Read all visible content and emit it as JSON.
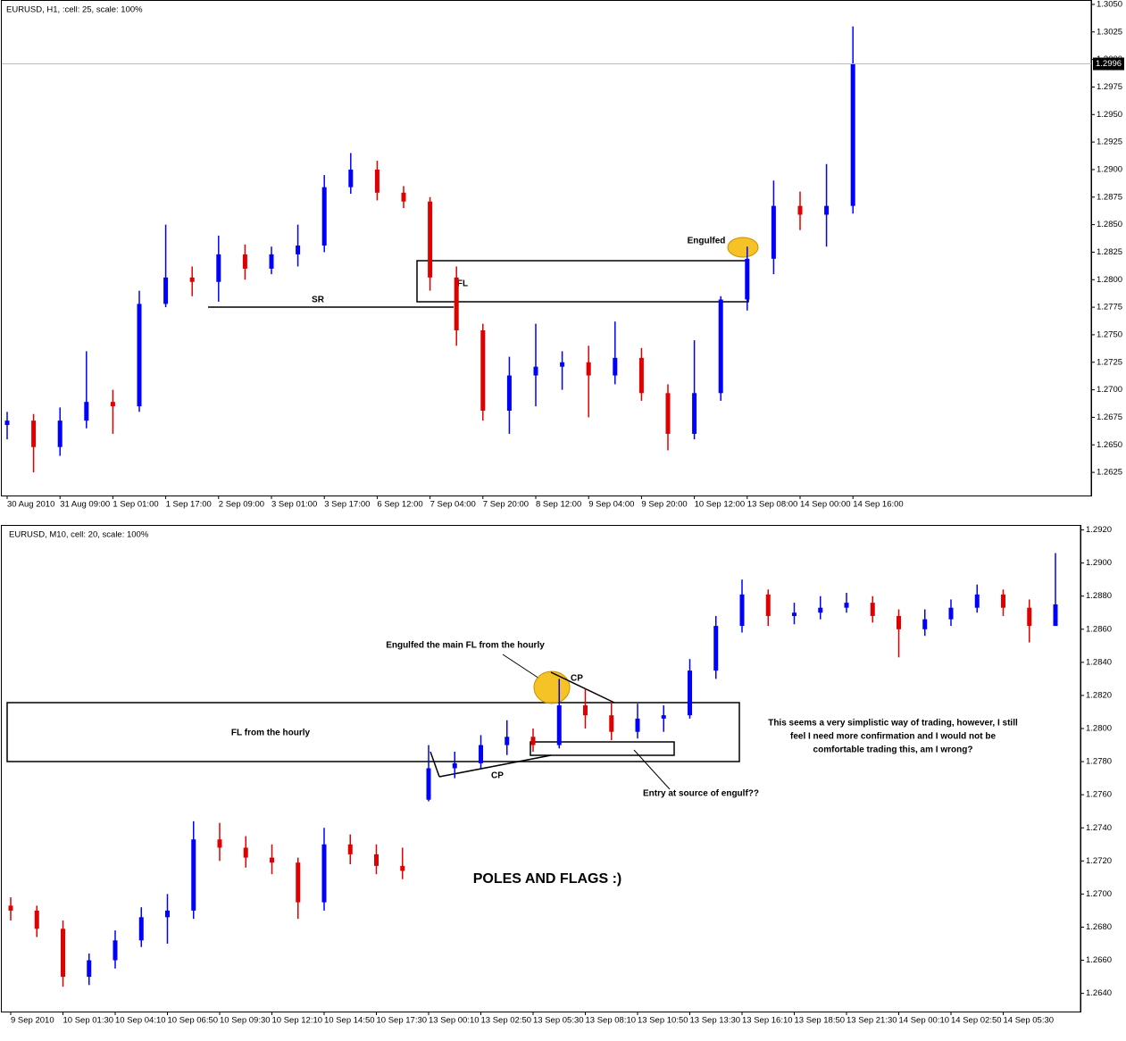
{
  "chart_data": [
    {
      "type": "candlestick",
      "title": "EURUSD, H1, :cell: 25, scale: 100%",
      "categories": [
        "30 Aug 2010",
        null,
        "31 Aug 09:00",
        null,
        "1 Sep 01:00",
        null,
        "1 Sep 17:00",
        null,
        "2 Sep 09:00",
        null,
        "3 Sep 01:00",
        null,
        "3 Sep 17:00",
        null,
        "6 Sep 12:00",
        null,
        "7 Sep 04:00",
        null,
        "7 Sep 20:00",
        null,
        "8 Sep 12:00",
        null,
        "9 Sep 04:00",
        null,
        "9 Sep 20:00",
        null,
        "10 Sep 12:00",
        null,
        "13 Sep 08:00",
        null,
        "14 Sep 00:00",
        null,
        "14 Sep 16:00"
      ],
      "open": [
        1.2668,
        1.2672,
        1.2648,
        1.2672,
        1.2689,
        1.2685,
        1.2778,
        1.2802,
        1.2798,
        1.2823,
        1.281,
        1.2823,
        1.2831,
        1.2884,
        1.29,
        1.2879,
        1.2871,
        1.2802,
        1.2754,
        1.2681,
        1.2713,
        1.2721,
        1.2725,
        1.2713,
        1.2729,
        1.2697,
        1.266,
        1.2697,
        1.2782,
        1.2819,
        1.2867,
        1.2859,
        1.2867
      ],
      "high": [
        1.268,
        1.2678,
        1.2684,
        1.2735,
        1.27,
        1.279,
        1.285,
        1.2812,
        1.284,
        1.2832,
        1.283,
        1.285,
        1.2895,
        1.2915,
        1.2908,
        1.2885,
        1.2875,
        1.2812,
        1.276,
        1.273,
        1.276,
        1.2735,
        1.274,
        1.2762,
        1.2738,
        1.2705,
        1.2745,
        1.2785,
        1.283,
        1.289,
        1.288,
        1.2905,
        1.303
      ],
      "low": [
        1.2655,
        1.2625,
        1.264,
        1.2665,
        1.266,
        1.268,
        1.2775,
        1.2785,
        1.278,
        1.28,
        1.2805,
        1.2812,
        1.2825,
        1.2878,
        1.2872,
        1.2865,
        1.279,
        1.274,
        1.2672,
        1.266,
        1.2685,
        1.27,
        1.2675,
        1.2705,
        1.269,
        1.2645,
        1.2655,
        1.269,
        1.2772,
        1.2805,
        1.2845,
        1.283,
        1.286
      ],
      "close": [
        1.2672,
        1.2648,
        1.2672,
        1.2689,
        1.2685,
        1.2778,
        1.2802,
        1.2798,
        1.2823,
        1.281,
        1.2823,
        1.2831,
        1.2884,
        1.29,
        1.2879,
        1.2871,
        1.2802,
        1.2754,
        1.2681,
        1.2713,
        1.2721,
        1.2725,
        1.2713,
        1.2729,
        1.2697,
        1.266,
        1.2697,
        1.2782,
        1.2819,
        1.2867,
        1.2859,
        1.2867,
        1.2996
      ],
      "up_color": "#0000ff",
      "down_color": "#e00000",
      "ylim": [
        1.2604,
        1.3054
      ],
      "yticks": [
        1.2625,
        {
          "value": 1.265,
          "label": "1.2650"
        },
        1.2675,
        {
          "value": 1.27,
          "label": "1.2700"
        },
        1.2725,
        {
          "value": 1.275,
          "label": "1.2750"
        },
        1.2775,
        {
          "value": 1.28,
          "label": "1.2800"
        },
        1.2825,
        {
          "value": 1.285,
          "label": "1.2850"
        },
        1.2875,
        {
          "value": 1.29,
          "label": "1.2900"
        },
        1.2925,
        {
          "value": 1.295,
          "label": "1.2950"
        },
        1.2975,
        {
          "value": 1.3,
          "label": "1.3000"
        },
        1.3025,
        {
          "value": 1.305,
          "label": "1.3050"
        }
      ],
      "last_price": 1.2996,
      "annotations": [
        "SR",
        "FL",
        "Engulfed"
      ]
    },
    {
      "type": "candlestick",
      "title": "EURUSD, M10, cell: 20, scale: 100%",
      "categories": [
        "9 Sep 2010",
        null,
        "10 Sep 01:30",
        null,
        "10 Sep 04:10",
        null,
        "10 Sep 06:50",
        null,
        "10 Sep 09:30",
        null,
        "10 Sep 12:10",
        null,
        "10 Sep 14:50",
        null,
        "10 Sep 17:30",
        null,
        "13 Sep 00:10",
        null,
        "13 Sep 02:50",
        null,
        "13 Sep 05:30",
        null,
        "13 Sep 08:10",
        null,
        "13 Sep 10:50",
        null,
        "13 Sep 13:30",
        null,
        "13 Sep 16:10",
        null,
        "13 Sep 18:50",
        null,
        "13 Sep 21:30",
        null,
        "14 Sep 00:10",
        null,
        "14 Sep 02:50",
        null,
        "14 Sep 05:30",
        null,
        null
      ],
      "open": [
        1.2693,
        1.269,
        1.2679,
        1.265,
        1.266,
        1.2672,
        1.2686,
        1.269,
        1.2733,
        1.2728,
        1.2722,
        1.2719,
        1.2695,
        1.273,
        1.2724,
        1.2717,
        1.2757,
        1.2776,
        1.2779,
        1.279,
        1.2795,
        1.279,
        1.2814,
        1.2808,
        1.2798,
        1.2806,
        1.2808,
        1.2835,
        1.2862,
        1.2881,
        1.2868,
        1.287,
        1.2873,
        1.2876,
        1.2868,
        1.286,
        1.2866,
        1.2873,
        1.2881,
        1.2873,
        1.2862
      ],
      "high": [
        1.2698,
        1.2693,
        1.2684,
        1.2664,
        1.2678,
        1.2692,
        1.27,
        1.2744,
        1.2743,
        1.2735,
        1.273,
        1.2722,
        1.274,
        1.2736,
        1.273,
        1.2728,
        1.279,
        1.2786,
        1.2796,
        1.2805,
        1.28,
        1.283,
        1.2824,
        1.2816,
        1.2815,
        1.2814,
        1.2842,
        1.2868,
        1.289,
        1.2884,
        1.2876,
        1.288,
        1.2882,
        1.288,
        1.2872,
        1.2872,
        1.2878,
        1.2887,
        1.2884,
        1.2878,
        1.2906
      ],
      "low": [
        1.2684,
        1.2674,
        1.2644,
        1.2645,
        1.2655,
        1.2668,
        1.267,
        1.2685,
        1.272,
        1.2716,
        1.2712,
        1.2685,
        1.269,
        1.2718,
        1.2712,
        1.2709,
        1.2756,
        1.277,
        1.2776,
        1.2784,
        1.2786,
        1.2788,
        1.28,
        1.2793,
        1.2794,
        1.2798,
        1.2806,
        1.283,
        1.2858,
        1.2862,
        1.2863,
        1.2866,
        1.287,
        1.2864,
        1.2843,
        1.2856,
        1.2862,
        1.287,
        1.2868,
        1.2852,
        1.2862
      ],
      "close": [
        1.269,
        1.2679,
        1.265,
        1.266,
        1.2672,
        1.2686,
        1.269,
        1.2733,
        1.2728,
        1.2722,
        1.2719,
        1.2695,
        1.273,
        1.2724,
        1.2717,
        1.2714,
        1.2776,
        1.2779,
        1.279,
        1.2795,
        1.279,
        1.2814,
        1.2808,
        1.2798,
        1.2806,
        1.2808,
        1.2835,
        1.2862,
        1.2881,
        1.2868,
        1.287,
        1.2873,
        1.2876,
        1.2868,
        1.286,
        1.2866,
        1.2873,
        1.2881,
        1.2873,
        1.2862,
        1.2875
      ],
      "up_color": "#0000ff",
      "down_color": "#e00000",
      "ylim": [
        1.2629,
        1.2923
      ],
      "yticks": [
        {
          "value": 1.264,
          "label": "1.2640"
        },
        {
          "value": 1.266,
          "label": "1.2660"
        },
        {
          "value": 1.268,
          "label": "1.2680"
        },
        {
          "value": 1.27,
          "label": "1.2700"
        },
        {
          "value": 1.272,
          "label": "1.2720"
        },
        {
          "value": 1.274,
          "label": "1.2740"
        },
        {
          "value": 1.276,
          "label": "1.2760"
        },
        {
          "value": 1.278,
          "label": "1.2780"
        },
        {
          "value": 1.28,
          "label": "1.2800"
        },
        {
          "value": 1.282,
          "label": "1.2820"
        },
        {
          "value": 1.284,
          "label": "1.2840"
        },
        {
          "value": 1.286,
          "label": "1.2860"
        },
        {
          "value": 1.288,
          "label": "1.2880"
        },
        {
          "value": 1.29,
          "label": "1.2900"
        },
        {
          "value": 1.292,
          "label": "1.2920"
        }
      ],
      "annotations": [
        "FL from the hourly",
        "Engulfed the main FL from the hourly",
        "CP",
        "CP",
        "Entry at source of engulf??",
        "POLES AND FLAGS :)"
      ],
      "comment": [
        "This seems a very simplistic way of trading, however, I still",
        "feel I need more confirmation and I would not be",
        "comfortable trading this, am I wrong?"
      ]
    }
  ]
}
